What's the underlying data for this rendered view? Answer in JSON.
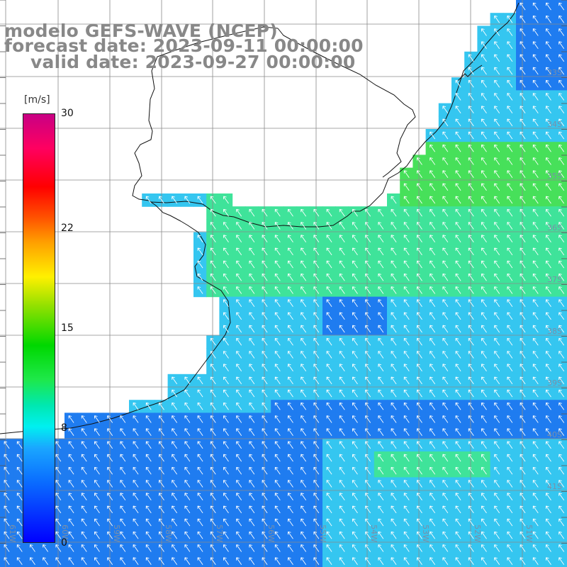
{
  "title": {
    "model": "modelo GEFS-WAVE (NCEP)",
    "forecast_date": "forecast date: 2023-09-11 00:00:00",
    "valid_date": "valid date: 2023-09-27 00:00:00"
  },
  "colorbar": {
    "units": "[m/s]",
    "ticks": [
      "30",
      "22",
      "15",
      "8",
      "0"
    ],
    "tick_values": [
      30,
      22,
      15,
      8,
      0
    ],
    "range": [
      0,
      30
    ],
    "colors": [
      "#0000ff",
      "#1aa6ff",
      "#00f0f0",
      "#00d800",
      "#fff000",
      "#ff0000",
      "#c80084"
    ]
  },
  "grid": {
    "lat_labels": [
      "33S",
      "34S",
      "35S",
      "36S",
      "37S",
      "38S",
      "39S",
      "40S",
      "41S"
    ],
    "lon_labels": [
      "61W",
      "60W",
      "59W",
      "58W",
      "57W",
      "56W",
      "55W",
      "54W",
      "53W",
      "52W",
      "51W"
    ]
  },
  "field": {
    "description_colors": {
      "low": "#1f7cf0",
      "mid": "#35c6f0",
      "high": "#3fe39a",
      "peak": "#47e05a"
    },
    "arrow_color": "#ffffff",
    "arrow_direction": "north-west"
  }
}
